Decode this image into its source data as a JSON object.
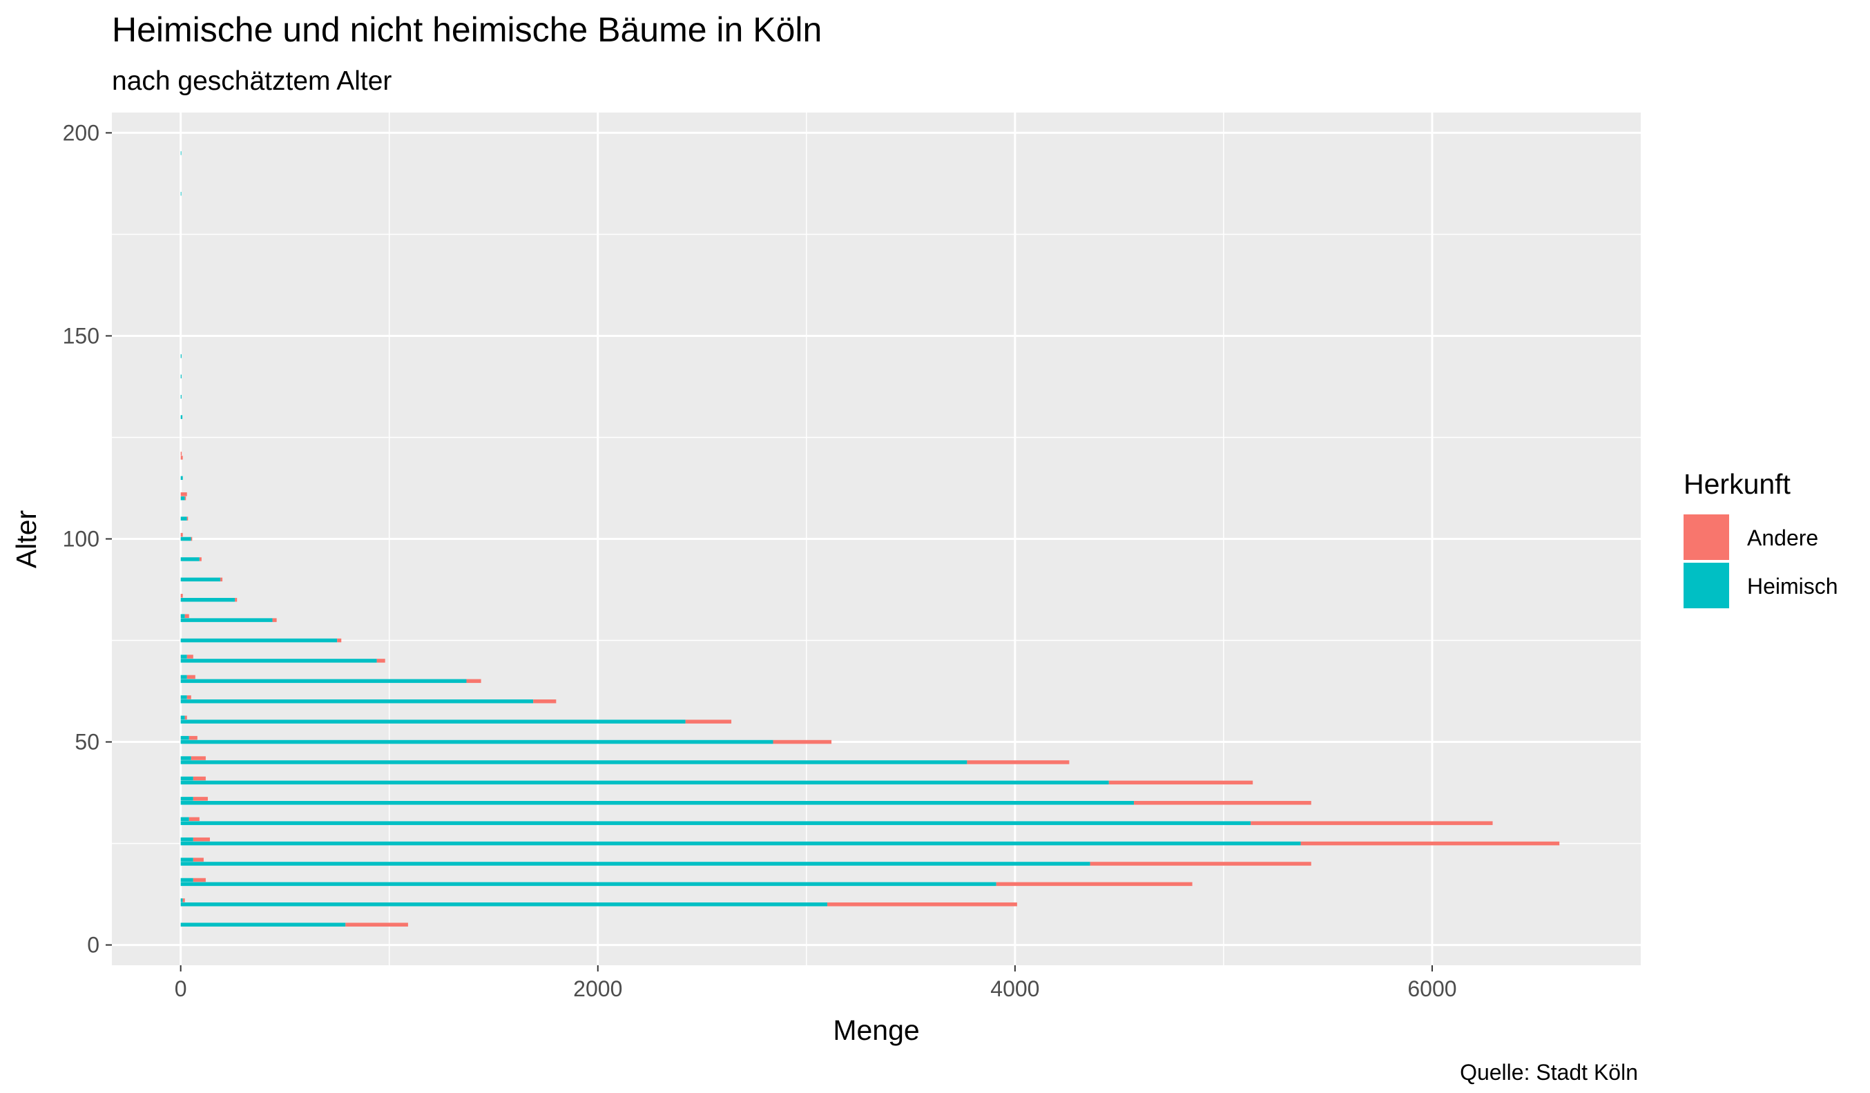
{
  "chart_data": {
    "type": "bar",
    "orientation": "horizontal",
    "stacked": true,
    "title": "Heimische und nicht heimische Bäume in Köln",
    "subtitle": "nach geschätztem Alter",
    "xlabel": "Menge",
    "ylabel": "Alter",
    "caption": "Quelle: Stadt Köln",
    "xlim": [
      -330,
      7000
    ],
    "ylim": [
      -5,
      205
    ],
    "x_ticks": [
      0,
      2000,
      4000,
      6000
    ],
    "y_ticks": [
      0,
      50,
      100,
      150,
      200
    ],
    "grid": true,
    "legend": {
      "title": "Herkunft",
      "position": "right",
      "entries": [
        {
          "label": "Andere",
          "color": "#F8766D"
        },
        {
          "label": "Heimisch",
          "color": "#00BFC4"
        }
      ]
    },
    "series": [
      {
        "name": "Heimisch",
        "color": "#00BFC4",
        "points": [
          {
            "age": 5,
            "value": 790
          },
          {
            "age": 10,
            "value": 3100
          },
          {
            "age": 15,
            "value": 3910
          },
          {
            "age": 20,
            "value": 4360
          },
          {
            "age": 25,
            "value": 5370
          },
          {
            "age": 30,
            "value": 5130
          },
          {
            "age": 35,
            "value": 4570
          },
          {
            "age": 40,
            "value": 4450
          },
          {
            "age": 45,
            "value": 3770
          },
          {
            "age": 50,
            "value": 2840
          },
          {
            "age": 55,
            "value": 2420
          },
          {
            "age": 60,
            "value": 1690
          },
          {
            "age": 65,
            "value": 1370
          },
          {
            "age": 70,
            "value": 940
          },
          {
            "age": 75,
            "value": 750
          },
          {
            "age": 80,
            "value": 440
          },
          {
            "age": 85,
            "value": 260
          },
          {
            "age": 90,
            "value": 190
          },
          {
            "age": 95,
            "value": 90
          },
          {
            "age": 100,
            "value": 50
          },
          {
            "age": 105,
            "value": 30
          },
          {
            "age": 110,
            "value": 20
          },
          {
            "age": 115,
            "value": 10
          },
          {
            "age": 130,
            "value": 8
          },
          {
            "age": 135,
            "value": 4
          },
          {
            "age": 140,
            "value": 4
          },
          {
            "age": 145,
            "value": 4
          },
          {
            "age": 185,
            "value": 3
          },
          {
            "age": 195,
            "value": 3
          },
          {
            "age": 21,
            "value": 60
          },
          {
            "age": 31,
            "value": 40
          },
          {
            "age": 36,
            "value": 60
          },
          {
            "age": 41,
            "value": 60
          },
          {
            "age": 46,
            "value": 50
          },
          {
            "age": 51,
            "value": 40
          },
          {
            "age": 56,
            "value": 20
          },
          {
            "age": 61,
            "value": 30
          },
          {
            "age": 66,
            "value": 30
          },
          {
            "age": 71,
            "value": 30
          },
          {
            "age": 81,
            "value": 20
          },
          {
            "age": 16,
            "value": 60
          },
          {
            "age": 26,
            "value": 60
          },
          {
            "age": 11,
            "value": 10
          }
        ]
      },
      {
        "name": "Andere",
        "color": "#F8766D",
        "points": [
          {
            "age": 5,
            "value": 300
          },
          {
            "age": 10,
            "value": 910
          },
          {
            "age": 15,
            "value": 940
          },
          {
            "age": 20,
            "value": 1060
          },
          {
            "age": 25,
            "value": 1240
          },
          {
            "age": 30,
            "value": 1160
          },
          {
            "age": 35,
            "value": 850
          },
          {
            "age": 40,
            "value": 690
          },
          {
            "age": 45,
            "value": 490
          },
          {
            "age": 50,
            "value": 280
          },
          {
            "age": 55,
            "value": 220
          },
          {
            "age": 60,
            "value": 110
          },
          {
            "age": 65,
            "value": 70
          },
          {
            "age": 70,
            "value": 40
          },
          {
            "age": 75,
            "value": 20
          },
          {
            "age": 80,
            "value": 20
          },
          {
            "age": 85,
            "value": 10
          },
          {
            "age": 90,
            "value": 10
          },
          {
            "age": 95,
            "value": 10
          },
          {
            "age": 100,
            "value": 5
          },
          {
            "age": 105,
            "value": 5
          },
          {
            "age": 110,
            "value": 5
          },
          {
            "age": 120,
            "value": 10
          },
          {
            "age": 21,
            "value": 50
          },
          {
            "age": 31,
            "value": 50
          },
          {
            "age": 36,
            "value": 70
          },
          {
            "age": 41,
            "value": 60
          },
          {
            "age": 46,
            "value": 70
          },
          {
            "age": 51,
            "value": 40
          },
          {
            "age": 56,
            "value": 10
          },
          {
            "age": 61,
            "value": 20
          },
          {
            "age": 66,
            "value": 40
          },
          {
            "age": 71,
            "value": 30
          },
          {
            "age": 81,
            "value": 20
          },
          {
            "age": 16,
            "value": 60
          },
          {
            "age": 26,
            "value": 80
          },
          {
            "age": 11,
            "value": 10
          },
          {
            "age": 86,
            "value": 10
          },
          {
            "age": 101,
            "value": 10
          },
          {
            "age": 111,
            "value": 30
          },
          {
            "age": 121,
            "value": 5
          }
        ]
      }
    ]
  }
}
